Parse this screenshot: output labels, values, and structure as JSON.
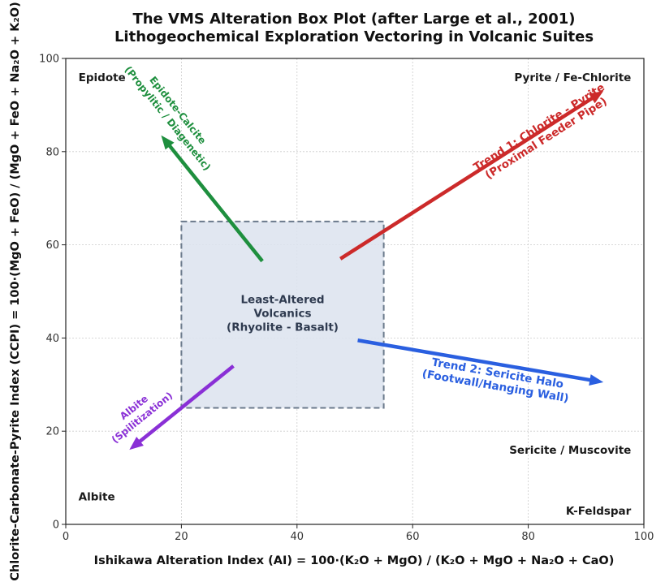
{
  "chart_data": {
    "type": "scatter",
    "title": "The VMS Alteration Box Plot (after Large et al., 2001)",
    "subtitle": "Lithogeochemical Exploration Vectoring in Volcanic Suites",
    "xlabel": "Ishikawa Alteration Index (AI) = 100·(K₂O + MgO) / (K₂O + MgO + Na₂O + CaO)",
    "ylabel": "Chlorite-Carbonate-Pyrite Index (CCPI) = 100·(MgO + FeO) / (MgO + FeO + Na₂O + K₂O)",
    "xlim": [
      0,
      100
    ],
    "ylim": [
      0,
      100
    ],
    "xticks": [
      0,
      20,
      40,
      60,
      80,
      100
    ],
    "yticks": [
      0,
      20,
      40,
      60,
      80,
      100
    ],
    "grid": true,
    "least_altered_box": {
      "x": [
        20,
        55
      ],
      "y": [
        25,
        65
      ],
      "label_lines": [
        "Least-Altered",
        "Volcanics",
        "(Rhyolite - Basalt)"
      ],
      "fill": "#dce3ee",
      "stroke": "#6b7a8c"
    },
    "corners": [
      {
        "label": "Epidote",
        "x": 2.2,
        "y": 96
      },
      {
        "label": "Pyrite / Fe-Chlorite",
        "x": 97.8,
        "y": 96
      },
      {
        "label": "Albite",
        "x": 2.2,
        "y": 6
      },
      {
        "label": "K-Feldspar",
        "x": 97.8,
        "y": 3
      },
      {
        "label": "Sericite / Muscovite",
        "x": 97.8,
        "y": 16
      }
    ],
    "vectors": [
      {
        "name": "Trend 1: Chlorite - Pyrite (Proximal Feeder Pipe)",
        "label_lines": [
          "Trend 1: Chlorite - Pyrite",
          "(Proximal Feeder Pipe)"
        ],
        "from": [
          47.5,
          57
        ],
        "to": [
          93,
          93
        ],
        "color": "#cc2a2a",
        "label_at": [
          82.5,
          84
        ]
      },
      {
        "name": "Trend 2: Sericite Halo (Footwall/Hanging Wall)",
        "label_lines": [
          "Trend 2: Sericite Halo",
          "(Footwall/Hanging Wall)"
        ],
        "from": [
          50.5,
          39.5
        ],
        "to": [
          93,
          30.5
        ],
        "color": "#2a5fe0",
        "label_at": [
          74.5,
          31
        ]
      },
      {
        "name": "Epidote-Calcite (Propylitic / Diagenetic)",
        "label_lines": [
          "Epidote-Calcite",
          "(Propylitic / Diagenetic)"
        ],
        "from": [
          34,
          56.5
        ],
        "to": [
          16.5,
          83.5
        ],
        "color": "#1e8f3e",
        "label_at": [
          18.5,
          88
        ]
      },
      {
        "name": "Albite (Spilitization)",
        "label_lines": [
          "Albite",
          "(Spilitization)"
        ],
        "from": [
          29,
          34
        ],
        "to": [
          11,
          16
        ],
        "color": "#8a30d6",
        "label_at": [
          12.5,
          24
        ]
      }
    ]
  }
}
